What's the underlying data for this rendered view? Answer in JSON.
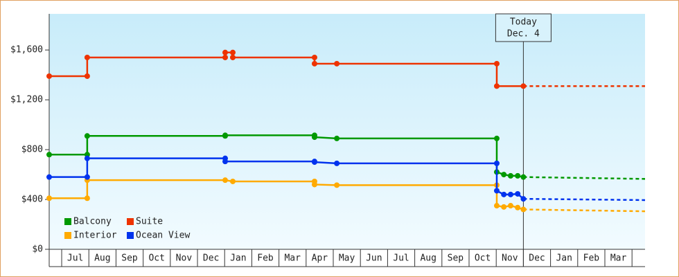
{
  "chart_data": {
    "type": "line",
    "x_categories_note": null,
    "xlim": [
      -0.46,
      21.48
    ],
    "xticks": [
      {
        "value": 0.5,
        "label": "Jul"
      },
      {
        "value": 1.5,
        "label": "Aug"
      },
      {
        "value": 2.5,
        "label": "Sep"
      },
      {
        "value": 3.5,
        "label": "Oct"
      },
      {
        "value": 4.5,
        "label": "Nov"
      },
      {
        "value": 5.5,
        "label": "Dec"
      },
      {
        "value": 6.5,
        "label": "Jan"
      },
      {
        "value": 7.5,
        "label": "Feb"
      },
      {
        "value": 8.5,
        "label": "Mar"
      },
      {
        "value": 9.5,
        "label": "Apr"
      },
      {
        "value": 10.5,
        "label": "May"
      },
      {
        "value": 11.5,
        "label": "Jun"
      },
      {
        "value": 12.5,
        "label": "Jul"
      },
      {
        "value": 13.5,
        "label": "Aug"
      },
      {
        "value": 14.5,
        "label": "Sep"
      },
      {
        "value": 15.5,
        "label": "Oct"
      },
      {
        "value": 16.5,
        "label": "Nov"
      },
      {
        "value": 17.5,
        "label": "Dec"
      },
      {
        "value": 18.5,
        "label": "Jan"
      },
      {
        "value": 19.5,
        "label": "Feb"
      },
      {
        "value": 20.5,
        "label": "Mar"
      }
    ],
    "ylim": [
      0,
      1890
    ],
    "yticks": [
      {
        "value": 0,
        "label": "$0"
      },
      {
        "value": 400,
        "label": "$400"
      },
      {
        "value": 800,
        "label": "$800"
      },
      {
        "value": 1200,
        "label": "$1,200"
      },
      {
        "value": 1600,
        "label": "$1,600"
      }
    ],
    "today": 17,
    "today_label": [
      "Today",
      "Dec. 4"
    ],
    "legend": "lower-left",
    "series": [
      {
        "name": "Balcony",
        "color": "#009900",
        "x": [
          -0.46,
          0.94,
          0.94,
          6.02,
          6.02,
          9.31,
          9.31,
          10.13,
          16.02,
          16.02,
          16.28,
          16.53,
          16.79,
          17,
          21.48
        ],
        "values": [
          760,
          760,
          910,
          910,
          915,
          915,
          900,
          890,
          890,
          620,
          600,
          590,
          590,
          580,
          565
        ]
      },
      {
        "name": "Suite",
        "color": "#ee3300",
        "x": [
          -0.46,
          0.94,
          0.94,
          6.02,
          6.02,
          6.3,
          6.3,
          9.31,
          9.31,
          10.13,
          16.02,
          16.02,
          17,
          21.48
        ],
        "values": [
          1390,
          1390,
          1540,
          1540,
          1580,
          1580,
          1540,
          1540,
          1490,
          1490,
          1490,
          1310,
          1310,
          1310
        ]
      },
      {
        "name": "Interior",
        "color": "#ffaa00",
        "x": [
          -0.46,
          0.94,
          0.94,
          6.02,
          6.3,
          9.31,
          9.31,
          10.13,
          16.02,
          16.02,
          16.28,
          16.53,
          16.79,
          17,
          21.48
        ],
        "values": [
          410,
          410,
          555,
          555,
          545,
          545,
          520,
          515,
          515,
          350,
          340,
          350,
          335,
          320,
          305
        ]
      },
      {
        "name": "Ocean View",
        "color": "#0033ee",
        "x": [
          -0.46,
          0.94,
          0.94,
          6.02,
          6.02,
          9.31,
          9.31,
          10.13,
          16.02,
          16.02,
          16.28,
          16.53,
          16.79,
          17,
          21.48
        ],
        "values": [
          580,
          580,
          730,
          730,
          705,
          705,
          700,
          690,
          690,
          470,
          440,
          440,
          445,
          405,
          395
        ]
      }
    ]
  }
}
